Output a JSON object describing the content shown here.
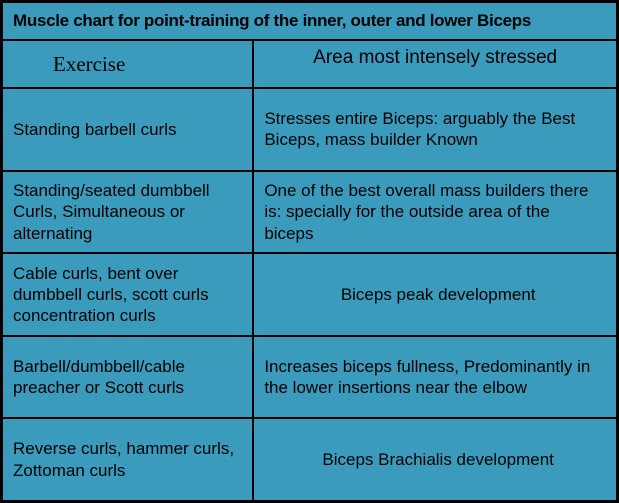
{
  "chart": {
    "type": "table",
    "background_color": "#3a9bbd",
    "border_color": "#000000",
    "text_color": "#000000",
    "title": "Muscle chart for point-training of the inner, outer and lower Biceps",
    "columns": [
      "Exercise",
      "Area most intensely stressed"
    ],
    "rows": [
      {
        "exercise": "Standing barbell curls",
        "area": "Stresses entire Biceps: arguably the Best Biceps, mass builder Known"
      },
      {
        "exercise": "Standing/seated dumbbell Curls, Simultaneous or alternating",
        "area": "One of the best overall mass builders there is: specially for the outside area of the biceps"
      },
      {
        "exercise": "Cable curls, bent over dumbbell curls, scott curls concentration curls",
        "area": "Biceps peak development"
      },
      {
        "exercise": "Barbell/dumbbell/cable preacher or Scott curls",
        "area": "Increases biceps fullness, Predominantly in the lower insertions near the elbow"
      },
      {
        "exercise": "Reverse curls, hammer curls, Zottoman curls",
        "area": "Biceps Brachialis development"
      }
    ]
  }
}
